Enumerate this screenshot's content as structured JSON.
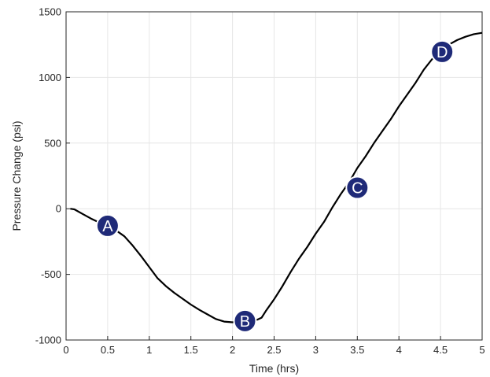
{
  "chart_data": {
    "type": "line",
    "xlabel": "Time (hrs)",
    "ylabel": "Pressure Change (psi)",
    "xlim": [
      0,
      5
    ],
    "ylim": [
      -1000,
      1500
    ],
    "x_ticks": [
      "0",
      "0.5",
      "1",
      "1.5",
      "2",
      "2.5",
      "3",
      "3.5",
      "4",
      "4.5",
      "5"
    ],
    "y_ticks": [
      "-1000",
      "-500",
      "0",
      "500",
      "1000",
      "1500"
    ],
    "grid": true,
    "colors": {
      "line": "#000000",
      "marker": "#1f2a78",
      "grid": "#e6e6e6",
      "axis": "#262626"
    },
    "series": [
      {
        "x": [
          0.05,
          0.1,
          0.2,
          0.3,
          0.4,
          0.5,
          0.6,
          0.7,
          0.8,
          0.9,
          1.0,
          1.1,
          1.2,
          1.3,
          1.4,
          1.5,
          1.6,
          1.7,
          1.8,
          1.9,
          2.0,
          2.05,
          2.1,
          2.15,
          2.2,
          2.25,
          2.3,
          2.35,
          2.4,
          2.5,
          2.6,
          2.7,
          2.8,
          2.9,
          3.0,
          3.1,
          3.2,
          3.3,
          3.4,
          3.5,
          3.6,
          3.7,
          3.8,
          3.9,
          4.0,
          4.1,
          4.2,
          4.3,
          4.4,
          4.5,
          4.6,
          4.7,
          4.8,
          4.9,
          5.0
        ],
        "y": [
          0,
          -5,
          -40,
          -75,
          -105,
          -130,
          -165,
          -210,
          -280,
          -360,
          -445,
          -530,
          -590,
          -640,
          -685,
          -730,
          -770,
          -805,
          -840,
          -860,
          -865,
          -860,
          -862,
          -855,
          -850,
          -855,
          -845,
          -830,
          -780,
          -690,
          -590,
          -480,
          -380,
          -290,
          -190,
          -100,
          10,
          110,
          200,
          310,
          400,
          500,
          590,
          680,
          780,
          870,
          960,
          1060,
          1140,
          1200,
          1250,
          1285,
          1310,
          1330,
          1340
        ]
      }
    ],
    "annotations": [
      {
        "label": "A",
        "x": 0.5,
        "y": -130
      },
      {
        "label": "B",
        "x": 2.15,
        "y": -855
      },
      {
        "label": "C",
        "x": 3.5,
        "y": 160
      },
      {
        "label": "D",
        "x": 4.52,
        "y": 1195
      }
    ]
  }
}
